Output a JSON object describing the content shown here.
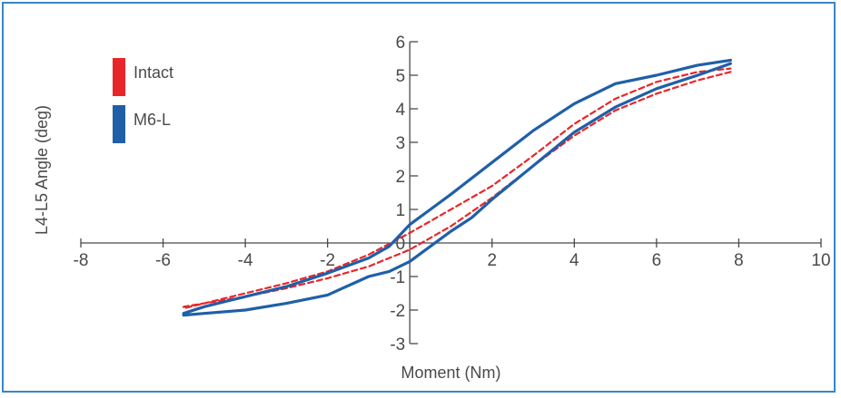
{
  "chart_data": {
    "type": "line",
    "title": "",
    "xlabel": "Moment (Nm)",
    "ylabel": "L4-L5 Angle (deg)",
    "xlim": [
      -8,
      10
    ],
    "ylim": [
      -3,
      6
    ],
    "xticks": [
      -8,
      -6,
      -4,
      -2,
      0,
      2,
      4,
      6,
      8,
      10
    ],
    "yticks": [
      -3,
      -2,
      -1,
      0,
      1,
      2,
      3,
      4,
      5,
      6
    ],
    "grid": false,
    "legend": {
      "placement": "top-left"
    },
    "series": [
      {
        "name": "Intact",
        "color": "#e8262a",
        "dash": true,
        "x": [
          7.8,
          7.0,
          6.0,
          5.0,
          4.0,
          3.0,
          2.0,
          1.0,
          0.5,
          0.0,
          -1.0,
          -2.0,
          -3.0,
          -4.0,
          -5.0,
          -5.5,
          -5.5,
          -5.0,
          -4.0,
          -3.0,
          -2.0,
          -1.0,
          0.0,
          0.5,
          1.0,
          2.0,
          3.0,
          4.0,
          5.0,
          6.0,
          7.0,
          7.8
        ],
        "y": [
          5.1,
          4.85,
          4.45,
          3.95,
          3.2,
          2.3,
          1.35,
          0.5,
          0.15,
          -0.2,
          -0.7,
          -1.05,
          -1.35,
          -1.6,
          -1.8,
          -1.9,
          -1.95,
          -1.8,
          -1.5,
          -1.2,
          -0.85,
          -0.35,
          0.3,
          0.65,
          1.0,
          1.7,
          2.6,
          3.55,
          4.3,
          4.8,
          5.1,
          5.2
        ]
      },
      {
        "name": "M6-L",
        "color": "#1f5fa8",
        "dash": false,
        "x": [
          7.8,
          7.0,
          6.0,
          5.0,
          4.0,
          3.0,
          2.0,
          1.5,
          1.0,
          0.5,
          0.0,
          -0.5,
          -1.0,
          -2.0,
          -3.0,
          -4.0,
          -5.0,
          -5.5,
          -5.5,
          -5.0,
          -4.0,
          -3.0,
          -2.0,
          -1.0,
          -0.5,
          0.0,
          0.5,
          1.0,
          2.0,
          3.0,
          4.0,
          5.0,
          6.0,
          7.0,
          7.8
        ],
        "y": [
          5.35,
          5.0,
          4.6,
          4.05,
          3.3,
          2.3,
          1.3,
          0.75,
          0.35,
          -0.1,
          -0.55,
          -0.85,
          -1.0,
          -1.55,
          -1.8,
          -2.0,
          -2.1,
          -2.15,
          -2.1,
          -1.9,
          -1.6,
          -1.3,
          -0.9,
          -0.45,
          -0.1,
          0.55,
          1.0,
          1.45,
          2.4,
          3.35,
          4.15,
          4.75,
          5.0,
          5.3,
          5.45
        ]
      }
    ]
  }
}
